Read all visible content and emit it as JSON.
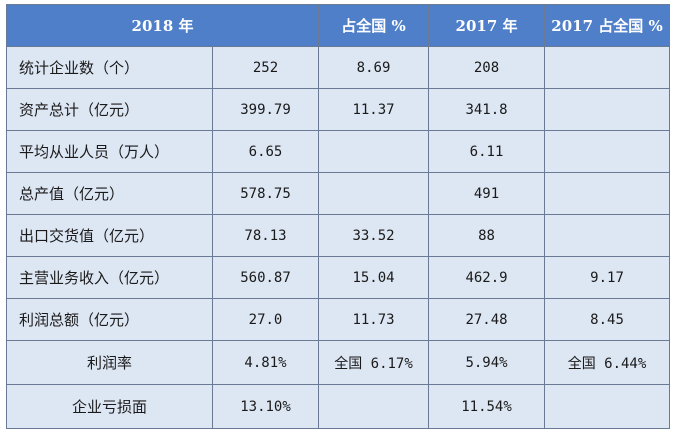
{
  "table": {
    "headers": {
      "year_2018": "2018 年",
      "share_2018": "占全国 %",
      "year_2017": "2017 年",
      "share_2017": "2017 占全国 %"
    },
    "rows": [
      {
        "label": "统计企业数（个）",
        "v2018": "252",
        "share2018": "8.69",
        "v2017": "208",
        "share2017": ""
      },
      {
        "label": "资产总计（亿元）",
        "v2018": "399.79",
        "share2018": "11.37",
        "v2017": "341.8",
        "share2017": ""
      },
      {
        "label": "平均从业人员（万人）",
        "v2018": "6.65",
        "share2018": "",
        "v2017": "6.11",
        "share2017": ""
      },
      {
        "label": "总产值（亿元）",
        "v2018": "578.75",
        "share2018": "",
        "v2017": "491",
        "share2017": ""
      },
      {
        "label": "出口交货值（亿元）",
        "v2018": "78.13",
        "share2018": "33.52",
        "v2017": "88",
        "share2017": ""
      },
      {
        "label": "主营业务收入（亿元）",
        "v2018": "560.87",
        "share2018": "15.04",
        "v2017": "462.9",
        "share2017": "9.17"
      },
      {
        "label": "利润总额（亿元）",
        "v2018": "27.0",
        "share2018": "11.73",
        "v2017": "27.48",
        "share2017": "8.45"
      },
      {
        "label": "利润率",
        "v2018": "4.81%",
        "share2018": "全国 6.17%",
        "v2017": "5.94%",
        "share2017": "全国 6.44%"
      },
      {
        "label": "企业亏损面",
        "v2018": "13.10%",
        "share2018": "",
        "v2017": "11.54%",
        "share2017": ""
      }
    ]
  }
}
